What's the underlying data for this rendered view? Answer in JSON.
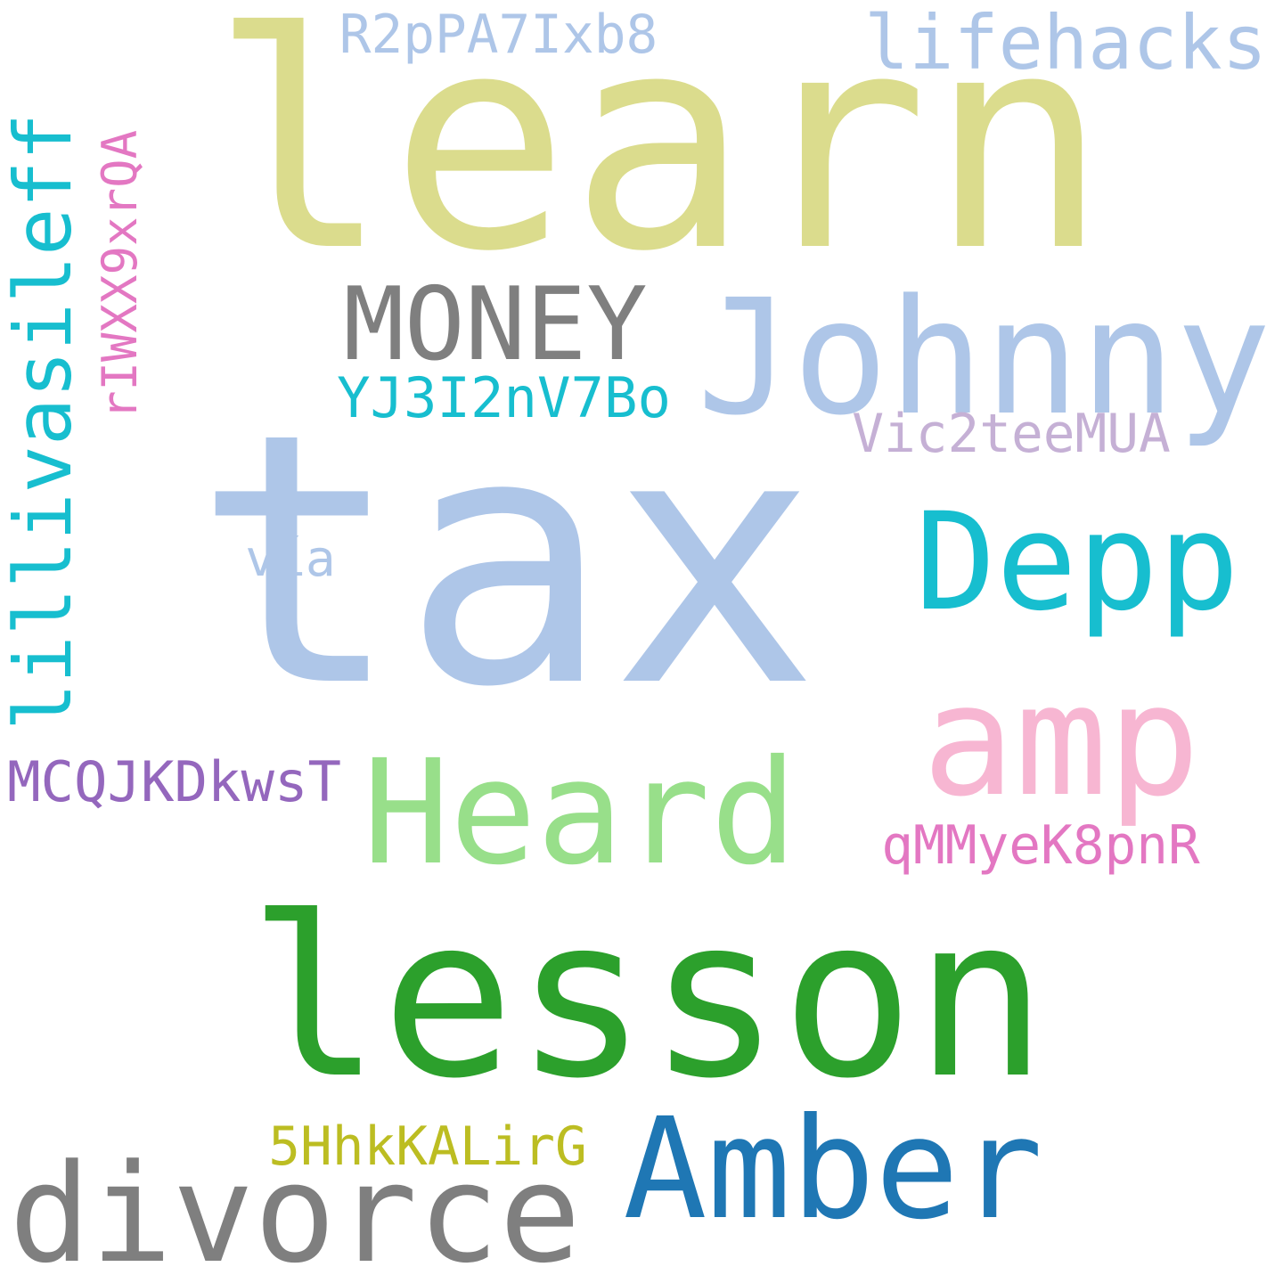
{
  "words": [
    {
      "id": "learn",
      "text": "learn",
      "color": "#dbdc8d"
    },
    {
      "id": "tax",
      "text": "tax",
      "color": "#aec6e8"
    },
    {
      "id": "lesson",
      "text": "lesson",
      "color": "#2ca02c"
    },
    {
      "id": "johnny",
      "text": "Johnny",
      "color": "#aec6e8"
    },
    {
      "id": "money",
      "text": "MONEY",
      "color": "#7f7f7f"
    },
    {
      "id": "depp",
      "text": "Depp",
      "color": "#17becf"
    },
    {
      "id": "amp",
      "text": "amp",
      "color": "#f7b6d2"
    },
    {
      "id": "heard",
      "text": "Heard",
      "color": "#98df8a"
    },
    {
      "id": "amber",
      "text": "Amber",
      "color": "#1f77b4"
    },
    {
      "id": "divorce",
      "text": "divorce",
      "color": "#7f7f7f"
    },
    {
      "id": "lifehacks",
      "text": "lifehacks",
      "color": "#aec6e8"
    },
    {
      "id": "r2ppa7ixb8",
      "text": "R2pPA7Ixb8",
      "color": "#aec6e8"
    },
    {
      "id": "yj3i2nv7bo",
      "text": "YJ3I2nV7Bo",
      "color": "#17becf"
    },
    {
      "id": "vic2teemua",
      "text": "Vic2teeMUA",
      "color": "#c5b0d5"
    },
    {
      "id": "via",
      "text": "vía",
      "color": "#aec6e8"
    },
    {
      "id": "mcqjkdkwst",
      "text": "MCQJKDkwsT",
      "color": "#9467bd"
    },
    {
      "id": "qmmyek8pnr",
      "text": "qMMyeK8pnR",
      "color": "#e377c2"
    },
    {
      "id": "5hhkkalirg",
      "text": "5HhkKALirG",
      "color": "#bcbd22"
    },
    {
      "id": "lillivasileff",
      "text": "lillivasileff",
      "color": "#17becf"
    },
    {
      "id": "riwxx9xrqa",
      "text": "rIWXX9xrQA",
      "color": "#e377c2"
    }
  ]
}
